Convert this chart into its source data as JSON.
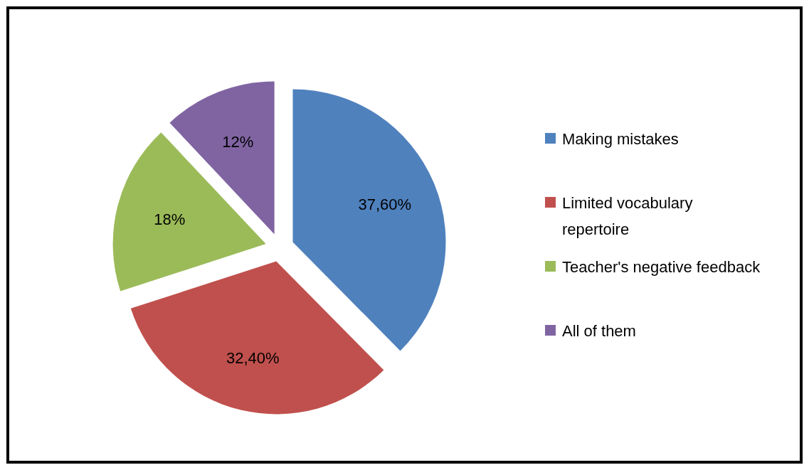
{
  "chart_data": {
    "type": "pie",
    "categories": [
      "Making mistakes",
      "Limited vocabulary repertoire",
      "Teacher's negative feedback",
      "All of them"
    ],
    "values": [
      37.6,
      32.4,
      18,
      12
    ],
    "value_labels": [
      "37,60%",
      "32,40%",
      "18%",
      "12%"
    ],
    "colors": [
      "#4f81bd",
      "#c0504d",
      "#9bbb59",
      "#8064a2"
    ],
    "legend": "right"
  }
}
